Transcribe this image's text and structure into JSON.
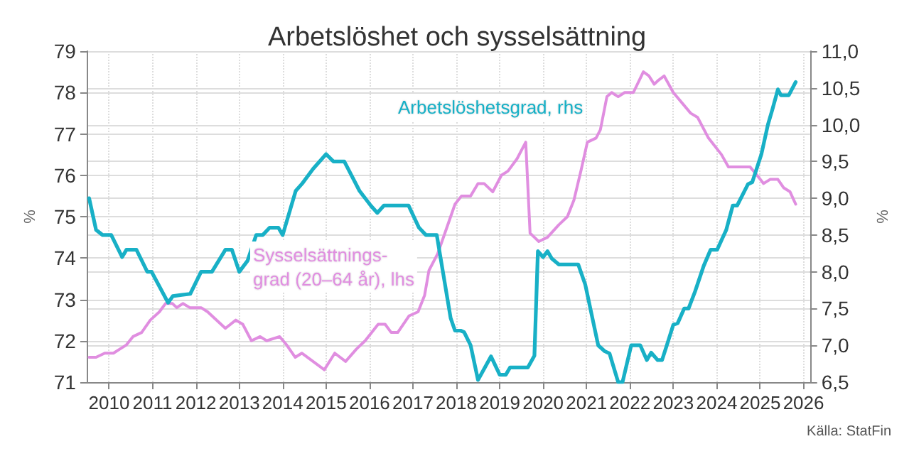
{
  "chart_data": {
    "type": "line",
    "title": "Arbetslöshet och sysselsättning",
    "ylabel": "%",
    "y2label": "%",
    "annotations": [
      "Källa: StatFin"
    ],
    "xlim": [
      2010,
      2026.65
    ],
    "xticks": [
      {
        "value": 2010.5,
        "label": "2010"
      },
      {
        "value": 2011.5,
        "label": "2011"
      },
      {
        "value": 2012.5,
        "label": "2012"
      },
      {
        "value": 2013.5,
        "label": "2013"
      },
      {
        "value": 2014.5,
        "label": "2014"
      },
      {
        "value": 2015.5,
        "label": "2015"
      },
      {
        "value": 2016.5,
        "label": "2016"
      },
      {
        "value": 2017.5,
        "label": "2017"
      },
      {
        "value": 2018.5,
        "label": "2018"
      },
      {
        "value": 2019.5,
        "label": "2019"
      },
      {
        "value": 2020.5,
        "label": "2020"
      },
      {
        "value": 2021.5,
        "label": "2021"
      },
      {
        "value": 2022.5,
        "label": "2022"
      },
      {
        "value": 2023.5,
        "label": "2023"
      },
      {
        "value": 2024.5,
        "label": "2024"
      },
      {
        "value": 2025.5,
        "label": "2025"
      },
      {
        "value": 2026.5,
        "label": "2026"
      }
    ],
    "ylim": [
      71,
      79
    ],
    "yticks": [
      71,
      72,
      73,
      74,
      75,
      76,
      77,
      78,
      79
    ],
    "y2lim": [
      6.5,
      11
    ],
    "y2ticks": [
      {
        "value": 6.5,
        "label": "6,5"
      },
      {
        "value": 7,
        "label": "7,0"
      },
      {
        "value": 7.5,
        "label": "7,5"
      },
      {
        "value": 8,
        "label": "8,0"
      },
      {
        "value": 8.5,
        "label": "8,5"
      },
      {
        "value": 9,
        "label": "9,0"
      },
      {
        "value": 9.5,
        "label": "9,5"
      },
      {
        "value": 10,
        "label": "10,0"
      },
      {
        "value": 10.5,
        "label": "10,5"
      },
      {
        "value": 11,
        "label": "11,0"
      }
    ],
    "grid": true,
    "legend": false,
    "marker": "none",
    "series": [
      {
        "name": "Sysselsättnings-\ngrad (20–64 år), lhs",
        "color": "#e08ee0",
        "x": [
          2010.04,
          2010.2,
          2010.4,
          2010.6,
          2010.75,
          2010.9,
          2011.05,
          2011.25,
          2011.45,
          2011.66,
          2011.8,
          2011.96,
          2012.06,
          2012.2,
          2012.36,
          2012.62,
          2012.77,
          2013.18,
          2013.42,
          2013.58,
          2013.78,
          2013.98,
          2014.13,
          2014.43,
          2014.59,
          2014.79,
          2014.94,
          2015.2,
          2015.46,
          2015.7,
          2015.95,
          2016.2,
          2016.4,
          2016.7,
          2016.86,
          2017.0,
          2017.15,
          2017.41,
          2017.62,
          2017.77,
          2017.87,
          2018.07,
          2018.27,
          2018.47,
          2018.62,
          2018.83,
          2019.0,
          2019.14,
          2019.34,
          2019.54,
          2019.69,
          2019.9,
          2020.1,
          2020.2,
          2020.3,
          2020.4,
          2020.6,
          2020.86,
          2021.06,
          2021.21,
          2021.37,
          2021.52,
          2021.72,
          2021.82,
          2021.97,
          2022.08,
          2022.23,
          2022.38,
          2022.58,
          2022.81,
          2022.94,
          2023.06,
          2023.16,
          2023.29,
          2023.5,
          2023.9,
          2024.06,
          2024.31,
          2024.61,
          2024.77,
          2025.02,
          2025.12,
          2025.27,
          2025.43,
          2025.58,
          2025.73,
          2025.91,
          2026.04,
          2026.19,
          2026.32
        ],
        "values": [
          71.6,
          71.6,
          71.7,
          71.7,
          71.8,
          71.9,
          72.1,
          72.2,
          72.5,
          72.7,
          72.9,
          72.9,
          72.8,
          72.9,
          72.8,
          72.8,
          72.7,
          72.3,
          72.5,
          72.4,
          72.0,
          72.1,
          72.0,
          72.1,
          71.9,
          71.6,
          71.7,
          71.5,
          71.3,
          71.7,
          71.5,
          71.8,
          72.0,
          72.4,
          72.4,
          72.2,
          72.2,
          72.6,
          72.7,
          73.1,
          73.7,
          74.1,
          74.7,
          75.3,
          75.5,
          75.5,
          75.8,
          75.8,
          75.6,
          76.0,
          76.1,
          76.4,
          76.8,
          74.6,
          74.5,
          74.4,
          74.5,
          74.8,
          75.0,
          75.4,
          76.1,
          76.8,
          76.9,
          77.1,
          77.9,
          78.0,
          77.9,
          78.0,
          78.0,
          78.5,
          78.4,
          78.2,
          78.3,
          78.4,
          78.0,
          77.5,
          77.4,
          76.9,
          76.5,
          76.2,
          76.2,
          76.2,
          76.2,
          76.0,
          75.8,
          75.9,
          75.9,
          75.7,
          75.6,
          75.3
        ]
      },
      {
        "name": "Arbetslöshetsgrad, rhs",
        "color": "#18b0c6",
        "axis": "y2",
        "x": [
          2010.04,
          2010.2,
          2010.35,
          2010.55,
          2010.8,
          2010.9,
          2011.13,
          2011.38,
          2011.48,
          2011.86,
          2011.97,
          2012.37,
          2012.62,
          2012.87,
          2013.18,
          2013.33,
          2013.5,
          2013.69,
          2013.89,
          2014.04,
          2014.2,
          2014.4,
          2014.5,
          2014.8,
          2014.95,
          2015.2,
          2015.5,
          2015.67,
          2015.92,
          2016.27,
          2016.53,
          2016.68,
          2016.83,
          2017.4,
          2017.64,
          2017.8,
          2018.05,
          2018.37,
          2018.47,
          2018.6,
          2018.68,
          2018.83,
          2019.0,
          2019.3,
          2019.5,
          2019.64,
          2019.74,
          2020.15,
          2020.3,
          2020.38,
          2020.5,
          2020.6,
          2020.7,
          2020.86,
          2021.31,
          2021.47,
          2021.77,
          2021.92,
          2022.03,
          2022.23,
          2022.33,
          2022.53,
          2022.74,
          2022.89,
          2022.99,
          2023.14,
          2023.24,
          2023.35,
          2023.5,
          2023.6,
          2023.75,
          2023.85,
          2024.0,
          2024.2,
          2024.36,
          2024.51,
          2024.72,
          2024.87,
          2024.97,
          2025.22,
          2025.32,
          2025.53,
          2025.68,
          2025.78,
          2025.91,
          2025.98,
          2026.16,
          2026.32
        ],
        "values": [
          9.0,
          8.57,
          8.5,
          8.5,
          8.2,
          8.3,
          8.3,
          8.0,
          8.0,
          7.58,
          7.67,
          7.7,
          8.0,
          8.0,
          8.3,
          8.3,
          8.0,
          8.15,
          8.5,
          8.5,
          8.6,
          8.6,
          8.5,
          9.1,
          9.2,
          9.4,
          9.6,
          9.5,
          9.5,
          9.1,
          8.9,
          8.8,
          8.9,
          8.9,
          8.6,
          8.5,
          8.5,
          7.37,
          7.2,
          7.2,
          7.18,
          7.0,
          6.53,
          6.85,
          6.6,
          6.6,
          6.7,
          6.7,
          6.86,
          8.28,
          8.2,
          8.28,
          8.18,
          8.1,
          8.1,
          7.83,
          7.0,
          6.92,
          6.89,
          6.5,
          6.5,
          7.0,
          7.0,
          6.8,
          6.9,
          6.8,
          6.8,
          7.0,
          7.28,
          7.3,
          7.5,
          7.5,
          7.73,
          8.08,
          8.3,
          8.3,
          8.57,
          8.9,
          8.9,
          9.19,
          9.22,
          9.6,
          10.0,
          10.2,
          10.48,
          10.4,
          10.4,
          10.58
        ]
      }
    ]
  }
}
